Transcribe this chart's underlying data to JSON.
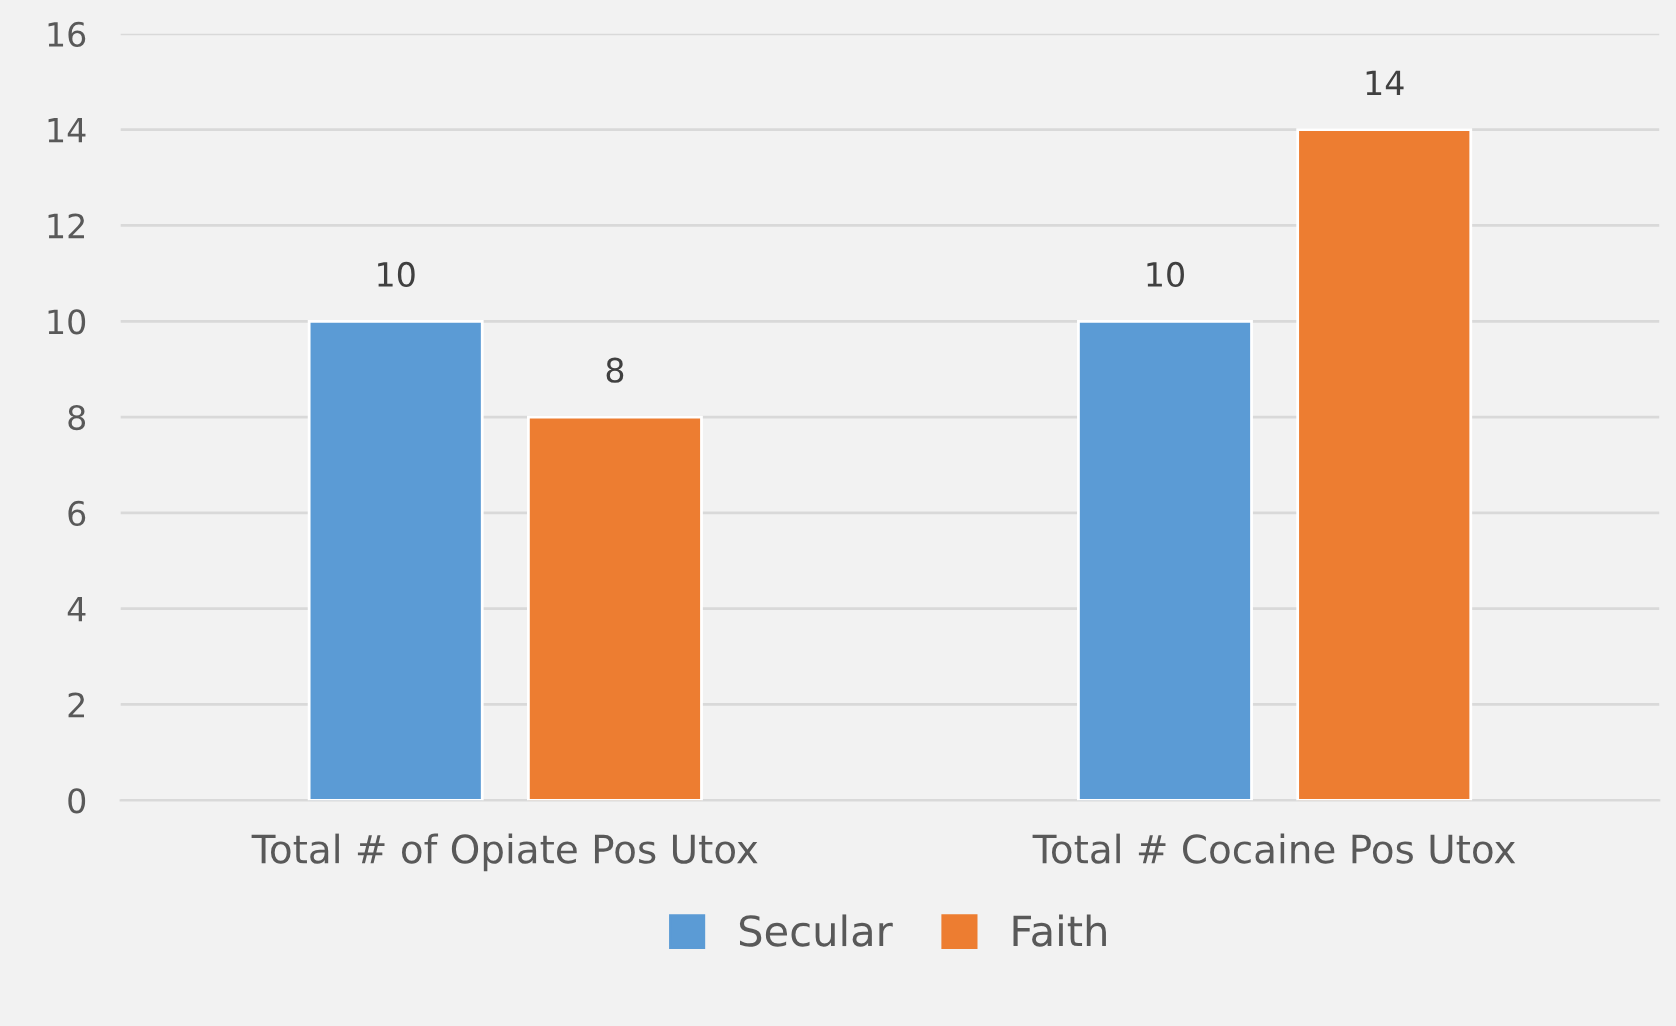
{
  "chart_data": {
    "type": "bar",
    "categories": [
      "Total # of Opiate Pos Utox",
      "Total # Cocaine Pos Utox"
    ],
    "series": [
      {
        "name": "Secular",
        "color": "#5b9bd5",
        "values": [
          10,
          10
        ]
      },
      {
        "name": "Faith",
        "color": "#ed7d31",
        "values": [
          8,
          14
        ]
      }
    ],
    "ylim": [
      0,
      16
    ],
    "yticks": [
      0,
      2,
      4,
      6,
      8,
      10,
      12,
      14,
      16
    ],
    "grid": "y",
    "legend": "bottom",
    "data_labels": true
  }
}
